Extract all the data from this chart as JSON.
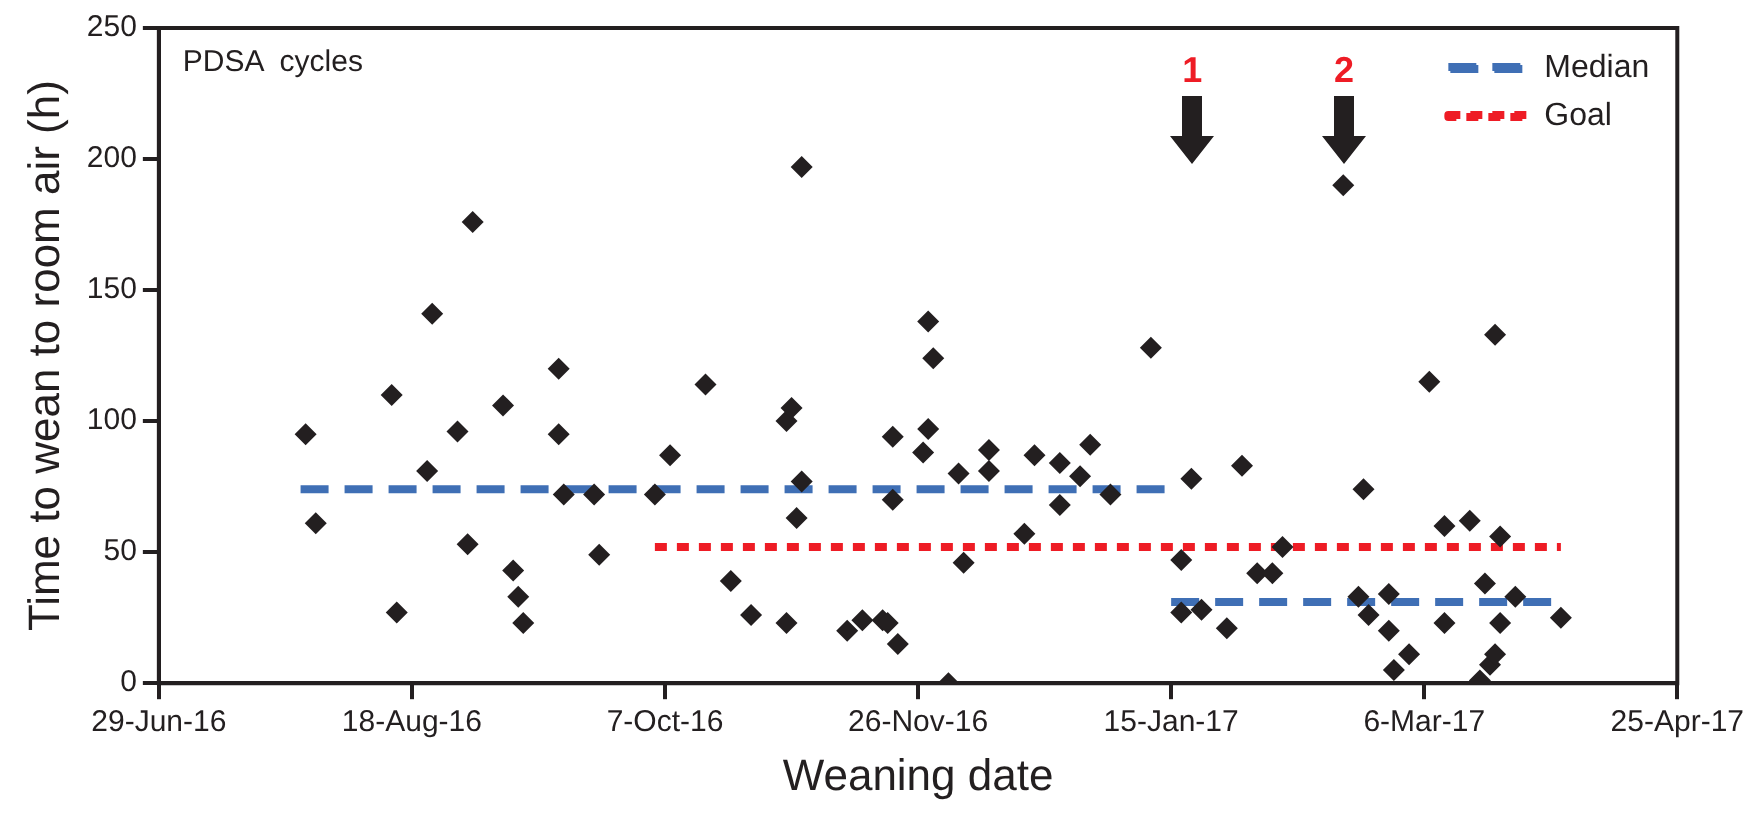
{
  "chart_data": {
    "type": "scatter",
    "xlabel": "Weaning date",
    "ylabel": "Time to wean to room air (h)",
    "xlim": [
      "2016-06-29",
      "2017-04-25"
    ],
    "xticks": [
      {
        "value": "2016-06-29",
        "label": "29-Jun-16"
      },
      {
        "value": "2016-08-18",
        "label": "18-Aug-16"
      },
      {
        "value": "2016-10-07",
        "label": "7-Oct-16"
      },
      {
        "value": "2016-11-26",
        "label": "26-Nov-16"
      },
      {
        "value": "2017-01-15",
        "label": "15-Jan-17"
      },
      {
        "value": "2017-03-06",
        "label": "6-Mar-17"
      },
      {
        "value": "2017-04-25",
        "label": "25-Apr-17"
      }
    ],
    "ylim": [
      0,
      250
    ],
    "yticks": [
      0,
      50,
      100,
      150,
      200,
      250
    ],
    "grid": false,
    "legend": "top right",
    "series": [
      {
        "type": "scatter",
        "color": "#231f20",
        "marker": "diamond",
        "x": [
          "2016-07-28",
          "2016-07-30",
          "2016-08-14",
          "2016-08-15",
          "2016-08-21",
          "2016-08-22",
          "2016-08-27",
          "2016-08-29",
          "2016-08-30",
          "2016-09-05",
          "2016-09-07",
          "2016-09-08",
          "2016-09-09",
          "2016-09-16",
          "2016-09-16",
          "2016-09-17",
          "2016-09-23",
          "2016-09-24",
          "2016-10-05",
          "2016-10-08",
          "2016-10-15",
          "2016-10-20",
          "2016-10-24",
          "2016-10-31",
          "2016-10-31",
          "2016-11-01",
          "2016-11-03",
          "2016-11-03",
          "2016-11-02",
          "2016-11-12",
          "2016-11-15",
          "2016-11-19",
          "2016-11-20",
          "2016-11-22",
          "2016-11-21",
          "2016-11-21",
          "2016-11-27",
          "2016-11-28",
          "2016-11-29",
          "2016-11-28",
          "2016-12-02",
          "2016-12-04",
          "2016-12-05",
          "2016-12-10",
          "2016-12-10",
          "2016-12-17",
          "2016-12-19",
          "2016-12-24",
          "2016-12-24",
          "2016-12-28",
          "2016-12-30",
          "2017-01-03",
          "2017-01-11",
          "2017-01-17",
          "2017-01-17",
          "2017-01-19",
          "2017-01-21",
          "2017-01-26",
          "2017-01-29",
          "2017-02-01",
          "2017-02-04",
          "2017-02-06",
          "2017-02-18",
          "2017-02-21",
          "2017-02-23",
          "2017-02-22",
          "2017-02-27",
          "2017-02-27",
          "2017-02-28",
          "2017-03-03",
          "2017-03-07",
          "2017-03-10",
          "2017-03-10",
          "2017-03-15",
          "2017-03-17",
          "2017-03-19",
          "2017-03-20",
          "2017-03-18",
          "2017-03-20",
          "2017-03-21",
          "2017-03-21",
          "2017-03-24",
          "2017-04-02"
        ],
        "values": [
          95,
          61,
          110,
          27,
          81,
          141,
          96,
          53,
          176,
          106,
          43,
          33,
          23,
          120,
          95,
          72,
          72,
          49,
          72,
          87,
          114,
          39,
          26,
          23,
          100,
          105,
          197,
          77,
          63,
          20,
          24,
          24,
          23,
          15,
          94,
          70,
          88,
          138,
          124,
          97,
          0,
          80,
          46,
          89,
          81,
          57,
          87,
          84,
          68,
          79,
          91,
          72,
          128,
          47,
          27,
          78,
          28,
          21,
          83,
          42,
          42,
          52,
          190,
          33,
          26,
          74,
          34,
          20,
          5,
          11,
          115,
          23,
          60,
          62,
          1,
          7,
          11,
          38,
          133,
          56,
          23,
          33,
          25
        ]
      },
      {
        "type": "line",
        "name": "Median",
        "color": "#3f6fb5",
        "line_style": "dashed",
        "marker": "none",
        "x": [
          "2016-07-27",
          "2017-01-14"
        ],
        "values": [
          74,
          74
        ]
      },
      {
        "type": "line",
        "color": "#3f6fb5",
        "line_style": "dashed",
        "marker": "none",
        "x": [
          "2017-01-15",
          "2017-04-01"
        ],
        "values": [
          31,
          31
        ]
      },
      {
        "type": "line",
        "name": "Goal",
        "color": "#ee1c25",
        "line_style": "dotted",
        "marker": "none",
        "x": [
          "2016-10-05",
          "2017-04-02"
        ],
        "values": [
          52,
          52
        ]
      }
    ],
    "annotations": [
      "PDSA  cycles",
      "1",
      "2"
    ]
  }
}
